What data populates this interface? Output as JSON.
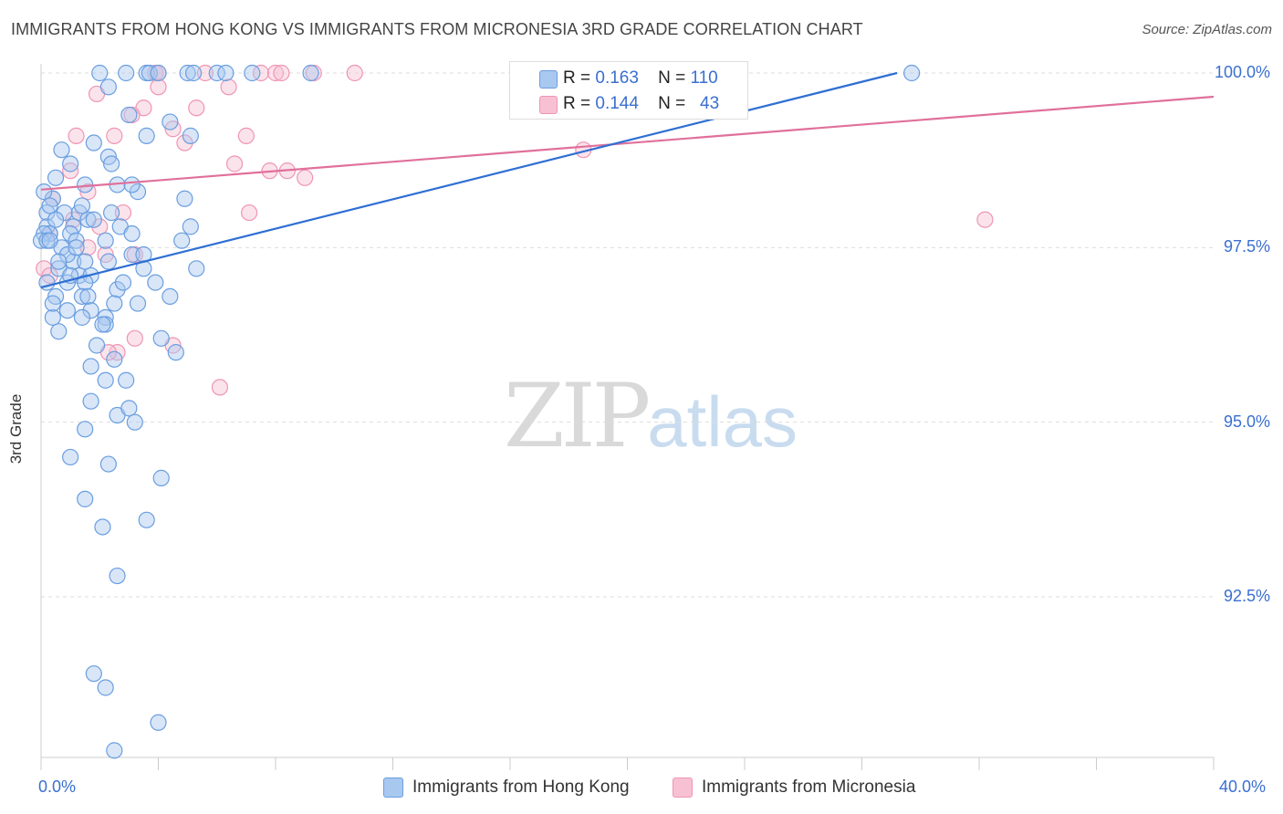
{
  "title": "IMMIGRANTS FROM HONG KONG VS IMMIGRANTS FROM MICRONESIA 3RD GRADE CORRELATION CHART",
  "source": "Source: ZipAtlas.com",
  "watermark": {
    "zip": "ZIP",
    "atlas": "atlas"
  },
  "legend_top": {
    "rows": [
      {
        "r_label": "R =",
        "r_value": "0.163",
        "n_label": "N =",
        "n_value": "110"
      },
      {
        "r_label": "R =",
        "r_value": "0.144",
        "n_label": "N =",
        "n_value": "43"
      }
    ]
  },
  "colors": {
    "hk_fill": "#a9c8f0",
    "hk_stroke": "#6a9ee0",
    "hk_line": "#2e6fd4",
    "mic_fill": "#f7c1d3",
    "mic_stroke": "#ef95b3",
    "mic_line": "#e0709a",
    "grid": "#dddddd",
    "tick_text": "#3a6fd0"
  },
  "chart_data": {
    "type": "scatter",
    "title": "IMMIGRANTS FROM HONG KONG VS IMMIGRANTS FROM MICRONESIA 3RD GRADE CORRELATION CHART",
    "xlabel": "",
    "ylabel": "3rd Grade",
    "xlim": [
      0,
      40
    ],
    "ylim": [
      90.2,
      100.2
    ],
    "x_tick_labels": [
      {
        "value": 0,
        "label": "0.0%"
      },
      {
        "value": 40,
        "label": "40.0%"
      }
    ],
    "y_ticks": [
      {
        "value": 92.5,
        "label": "92.5%"
      },
      {
        "value": 95.0,
        "label": "95.0%"
      },
      {
        "value": 97.5,
        "label": "97.5%"
      },
      {
        "value": 100.0,
        "label": "100.0%"
      }
    ],
    "grid": true,
    "legend": "bottom",
    "series": [
      {
        "name": "Immigrants from Hong Kong",
        "color": "#a9c8f0",
        "R": 0.163,
        "N": 110,
        "trend": {
          "x0": 0.0,
          "y0": 96.93,
          "x1": 29.2,
          "y1": 100.0
        },
        "points": [
          [
            2.0,
            100.0
          ],
          [
            2.9,
            100.0
          ],
          [
            3.6,
            100.0
          ],
          [
            3.7,
            100.0
          ],
          [
            4.0,
            100.0
          ],
          [
            5.0,
            100.0
          ],
          [
            5.2,
            100.0
          ],
          [
            6.0,
            100.0
          ],
          [
            6.3,
            100.0
          ],
          [
            7.2,
            100.0
          ],
          [
            9.2,
            100.0
          ],
          [
            29.7,
            100.0
          ],
          [
            2.3,
            99.8
          ],
          [
            3.0,
            99.4
          ],
          [
            4.4,
            99.3
          ],
          [
            3.6,
            99.1
          ],
          [
            5.1,
            99.1
          ],
          [
            0.7,
            98.9
          ],
          [
            1.8,
            99.0
          ],
          [
            2.3,
            98.8
          ],
          [
            2.4,
            98.7
          ],
          [
            1.0,
            98.7
          ],
          [
            0.5,
            98.5
          ],
          [
            1.5,
            98.4
          ],
          [
            2.6,
            98.4
          ],
          [
            3.3,
            98.3
          ],
          [
            3.1,
            98.4
          ],
          [
            4.9,
            98.2
          ],
          [
            0.4,
            98.2
          ],
          [
            0.1,
            98.3
          ],
          [
            0.2,
            98.0
          ],
          [
            0.8,
            98.0
          ],
          [
            1.3,
            98.0
          ],
          [
            1.6,
            97.9
          ],
          [
            2.4,
            98.0
          ],
          [
            0.2,
            97.8
          ],
          [
            0.3,
            97.7
          ],
          [
            0.1,
            97.7
          ],
          [
            1.1,
            97.8
          ],
          [
            1.8,
            97.9
          ],
          [
            5.1,
            97.8
          ],
          [
            2.7,
            97.8
          ],
          [
            0.0,
            97.6
          ],
          [
            0.2,
            97.6
          ],
          [
            0.7,
            97.5
          ],
          [
            1.0,
            97.7
          ],
          [
            1.2,
            97.6
          ],
          [
            2.2,
            97.6
          ],
          [
            3.1,
            97.7
          ],
          [
            4.8,
            97.6
          ],
          [
            1.1,
            97.3
          ],
          [
            0.9,
            97.4
          ],
          [
            1.5,
            97.3
          ],
          [
            0.6,
            97.2
          ],
          [
            1.3,
            97.1
          ],
          [
            0.9,
            97.0
          ],
          [
            1.7,
            97.1
          ],
          [
            2.3,
            97.3
          ],
          [
            3.1,
            97.4
          ],
          [
            3.5,
            97.4
          ],
          [
            3.5,
            97.2
          ],
          [
            5.3,
            97.2
          ],
          [
            1.5,
            97.0
          ],
          [
            1.4,
            96.8
          ],
          [
            2.6,
            96.9
          ],
          [
            0.5,
            96.8
          ],
          [
            1.6,
            96.8
          ],
          [
            4.4,
            96.8
          ],
          [
            0.9,
            96.6
          ],
          [
            1.7,
            96.6
          ],
          [
            2.5,
            96.7
          ],
          [
            3.3,
            96.7
          ],
          [
            1.4,
            96.5
          ],
          [
            2.2,
            96.5
          ],
          [
            0.4,
            96.5
          ],
          [
            2.2,
            96.4
          ],
          [
            0.6,
            96.3
          ],
          [
            1.9,
            96.1
          ],
          [
            4.1,
            96.2
          ],
          [
            4.6,
            96.0
          ],
          [
            2.5,
            95.9
          ],
          [
            1.7,
            95.8
          ],
          [
            2.2,
            95.6
          ],
          [
            2.9,
            95.6
          ],
          [
            1.7,
            95.3
          ],
          [
            2.6,
            95.1
          ],
          [
            3.0,
            95.2
          ],
          [
            3.2,
            95.0
          ],
          [
            1.5,
            94.9
          ],
          [
            1.0,
            94.5
          ],
          [
            2.3,
            94.4
          ],
          [
            4.1,
            94.2
          ],
          [
            1.5,
            93.9
          ],
          [
            2.1,
            93.5
          ],
          [
            3.6,
            93.6
          ],
          [
            2.6,
            92.8
          ],
          [
            1.8,
            91.4
          ],
          [
            2.2,
            91.2
          ],
          [
            4.0,
            90.7
          ],
          [
            2.5,
            90.3
          ],
          [
            0.2,
            97.0
          ],
          [
            0.3,
            97.6
          ],
          [
            0.6,
            97.3
          ],
          [
            1.0,
            97.1
          ],
          [
            0.5,
            97.9
          ],
          [
            1.4,
            98.1
          ],
          [
            2.1,
            96.4
          ],
          [
            3.9,
            97.0
          ],
          [
            0.4,
            96.7
          ],
          [
            1.2,
            97.5
          ],
          [
            0.3,
            98.1
          ],
          [
            2.8,
            97.0
          ]
        ]
      },
      {
        "name": "Immigrants from Micronesia",
        "color": "#f7c1d3",
        "R": 0.144,
        "N": 43,
        "trend": {
          "x0": 0.0,
          "y0": 98.33,
          "x1": 40.0,
          "y1": 99.66
        },
        "points": [
          [
            3.9,
            100.0
          ],
          [
            4.0,
            100.0
          ],
          [
            5.6,
            100.0
          ],
          [
            7.5,
            100.0
          ],
          [
            8.0,
            100.0
          ],
          [
            8.2,
            100.0
          ],
          [
            9.3,
            100.0
          ],
          [
            10.7,
            100.0
          ],
          [
            4.0,
            99.8
          ],
          [
            6.4,
            99.8
          ],
          [
            1.9,
            99.7
          ],
          [
            3.5,
            99.5
          ],
          [
            5.3,
            99.5
          ],
          [
            3.1,
            99.4
          ],
          [
            4.5,
            99.2
          ],
          [
            1.2,
            99.1
          ],
          [
            2.5,
            99.1
          ],
          [
            7.0,
            99.1
          ],
          [
            4.9,
            99.0
          ],
          [
            6.6,
            98.7
          ],
          [
            1.0,
            98.6
          ],
          [
            7.8,
            98.6
          ],
          [
            8.4,
            98.6
          ],
          [
            9.0,
            98.5
          ],
          [
            18.5,
            98.9
          ],
          [
            1.6,
            98.3
          ],
          [
            0.4,
            98.2
          ],
          [
            1.1,
            97.9
          ],
          [
            2.0,
            97.8
          ],
          [
            2.8,
            98.0
          ],
          [
            7.1,
            98.0
          ],
          [
            32.2,
            97.9
          ],
          [
            0.3,
            97.7
          ],
          [
            1.6,
            97.5
          ],
          [
            0.1,
            97.2
          ],
          [
            2.2,
            97.4
          ],
          [
            3.2,
            97.4
          ],
          [
            0.3,
            97.1
          ],
          [
            3.2,
            96.2
          ],
          [
            2.6,
            96.0
          ],
          [
            4.5,
            96.1
          ],
          [
            2.3,
            96.0
          ],
          [
            6.1,
            95.5
          ]
        ]
      }
    ]
  },
  "legend_bottom": {
    "items": [
      {
        "label": "Immigrants from Hong Kong"
      },
      {
        "label": "Immigrants from Micronesia"
      }
    ]
  }
}
